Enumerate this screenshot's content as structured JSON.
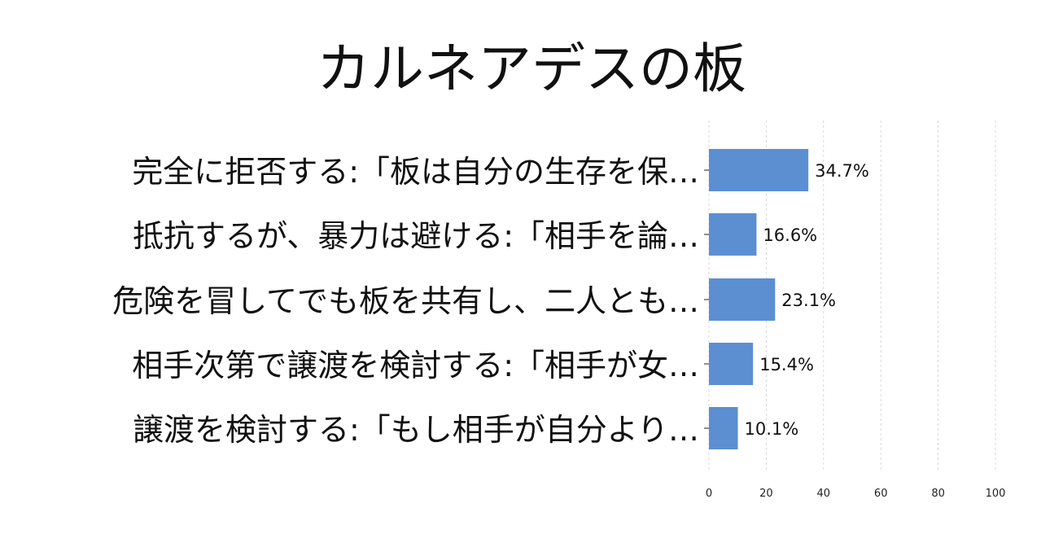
{
  "chart_data": {
    "type": "bar",
    "orientation": "horizontal",
    "title": "カルネアデスの板",
    "categories": [
      "完全に拒否する:「板は自分の生存を保…",
      "抵抗するが、暴力は避ける:「相手を論…",
      "危険を冒してでも板を共有し、二人とも…",
      "相手次第で譲渡を検討する:「相手が女…",
      "譲渡を検討する:「もし相手が自分より…"
    ],
    "values": [
      34.7,
      16.6,
      23.1,
      15.4,
      10.1
    ],
    "data_labels": [
      "34.7%",
      "16.6%",
      "23.1%",
      "15.4%",
      "10.1%"
    ],
    "xlim": [
      0,
      100
    ],
    "x_ticks": [
      0,
      20,
      40,
      60,
      80,
      100
    ],
    "x_tick_labels": [
      "0",
      "20",
      "40",
      "60",
      "80",
      "100"
    ],
    "grid": "vertical dashed",
    "bar_color": "#5b8fd1"
  }
}
